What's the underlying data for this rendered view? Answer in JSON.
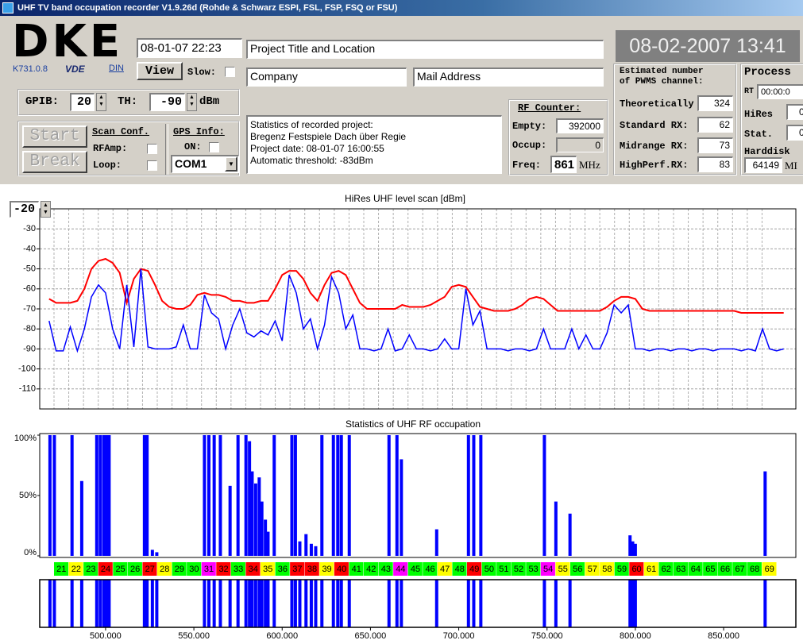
{
  "window": {
    "title": "UHF TV band occupation recorder V1.9.26d (Rohde & Schwarz ESPI, FSL, FSP, FSQ or FSU)"
  },
  "logo": {
    "text": "DKE",
    "version": "K731.0.8",
    "vde": "VDE",
    "din": "DIN"
  },
  "header": {
    "start_time": "08-01-07 22:23",
    "view": "View",
    "slow": "Slow:",
    "project_title": "Project Title and Location",
    "company": "Company",
    "mail": "Mail Address",
    "clock": "08-02-2007 13:41"
  },
  "settings": {
    "gpib_label": "GPIB:",
    "gpib": "20",
    "th_label": "TH:",
    "th": "-90",
    "th_unit": "dBm"
  },
  "controls": {
    "start": "Start",
    "break": "Break",
    "scan_conf": "Scan Conf.",
    "rfamp": "RFAmp:",
    "loop": "Loop:",
    "gps_info": "GPS Info:",
    "gps_on": "ON:",
    "com": "COM1"
  },
  "statistics": {
    "lines": [
      "Statistics of recorded project:",
      "Bregenz Festspiele Dach über Regie",
      "Project date: 08-01-07 16:00:55",
      "Automatic threshold: -83dBm"
    ]
  },
  "rf_counter": {
    "title": "RF Counter:",
    "empty_label": "Empty:",
    "empty": "392000",
    "occup_label": "Occup:",
    "occup": "0",
    "freq_label": "Freq:",
    "freq": "861",
    "freq_unit": "MHz"
  },
  "pwms": {
    "title_lines": [
      "Estimated number",
      "of PWMS channel:"
    ],
    "rows": [
      {
        "label": "Theoretically",
        "value": "324"
      },
      {
        "label": "Standard RX:",
        "value": "62"
      },
      {
        "label": "Midrange RX:",
        "value": "73"
      },
      {
        "label": "HighPerf.RX:",
        "value": "83"
      }
    ]
  },
  "process": {
    "title": "Process",
    "rt_label": "RT",
    "rt": "00:00:0",
    "hires_label": "HiRes",
    "hires": "0",
    "stat_label": "Stat.",
    "stat": "0",
    "harddisk_label": "Harddisk",
    "harddisk": "64149",
    "harddisk_unit": "MI"
  },
  "channels": [
    {
      "number": "21",
      "color": "#00ff00"
    },
    {
      "number": "22",
      "color": "#ffff00"
    },
    {
      "number": "23",
      "color": "#00ff00"
    },
    {
      "number": "24",
      "color": "#ff0000"
    },
    {
      "number": "25",
      "color": "#00ff00"
    },
    {
      "number": "26",
      "color": "#00ff00"
    },
    {
      "number": "27",
      "color": "#ff0000"
    },
    {
      "number": "28",
      "color": "#ffff00"
    },
    {
      "number": "29",
      "color": "#00ff00"
    },
    {
      "number": "30",
      "color": "#00ff00"
    },
    {
      "number": "31",
      "color": "#ff00ff"
    },
    {
      "number": "32",
      "color": "#ff0000"
    },
    {
      "number": "33",
      "color": "#00ff00"
    },
    {
      "number": "34",
      "color": "#ff0000"
    },
    {
      "number": "35",
      "color": "#ffff00"
    },
    {
      "number": "36",
      "color": "#00ff00"
    },
    {
      "number": "37",
      "color": "#ff0000"
    },
    {
      "number": "38",
      "color": "#ff0000"
    },
    {
      "number": "39",
      "color": "#ffff00"
    },
    {
      "number": "40",
      "color": "#ff0000"
    },
    {
      "number": "41",
      "color": "#00ff00"
    },
    {
      "number": "42",
      "color": "#00ff00"
    },
    {
      "number": "43",
      "color": "#00ff00"
    },
    {
      "number": "44",
      "color": "#ff00ff"
    },
    {
      "number": "45",
      "color": "#00ff00"
    },
    {
      "number": "46",
      "color": "#00ff00"
    },
    {
      "number": "47",
      "color": "#ffff00"
    },
    {
      "number": "48",
      "color": "#00ff00"
    },
    {
      "number": "49",
      "color": "#ff0000"
    },
    {
      "number": "50",
      "color": "#00ff00"
    },
    {
      "number": "51",
      "color": "#00ff00"
    },
    {
      "number": "52",
      "color": "#00ff00"
    },
    {
      "number": "53",
      "color": "#00ff00"
    },
    {
      "number": "54",
      "color": "#ff00ff"
    },
    {
      "number": "55",
      "color": "#ffff00"
    },
    {
      "number": "56",
      "color": "#00ff00"
    },
    {
      "number": "57",
      "color": "#ffff00"
    },
    {
      "number": "58",
      "color": "#ffff00"
    },
    {
      "number": "59",
      "color": "#00ff00"
    },
    {
      "number": "60",
      "color": "#ff0000"
    },
    {
      "number": "61",
      "color": "#ffff00"
    },
    {
      "number": "62",
      "color": "#00ff00"
    },
    {
      "number": "63",
      "color": "#00ff00"
    },
    {
      "number": "64",
      "color": "#00ff00"
    },
    {
      "number": "65",
      "color": "#00ff00"
    },
    {
      "number": "66",
      "color": "#00ff00"
    },
    {
      "number": "67",
      "color": "#00ff00"
    },
    {
      "number": "68",
      "color": "#00ff00"
    },
    {
      "number": "69",
      "color": "#ffff00"
    }
  ],
  "chart_data": [
    {
      "type": "line",
      "title": "HiRes UHF level scan [dBm]",
      "x": [
        468,
        472,
        476,
        480,
        484,
        488,
        492,
        496,
        500,
        504,
        508,
        512,
        516,
        520,
        524,
        528,
        532,
        536,
        540,
        544,
        548,
        552,
        556,
        560,
        564,
        568,
        572,
        576,
        580,
        584,
        588,
        592,
        596,
        600,
        604,
        608,
        612,
        616,
        620,
        624,
        628,
        632,
        636,
        640,
        644,
        648,
        652,
        656,
        660,
        664,
        668,
        672,
        676,
        680,
        684,
        688,
        692,
        696,
        700,
        704,
        708,
        712,
        716,
        720,
        724,
        728,
        732,
        736,
        740,
        744,
        748,
        752,
        756,
        760,
        764,
        768,
        772,
        776,
        780,
        784,
        788,
        792,
        796,
        800,
        804,
        808,
        812,
        816,
        820,
        824,
        828,
        832,
        836,
        840,
        844,
        848,
        852,
        856,
        860,
        864,
        868,
        872,
        876,
        880,
        884
      ],
      "series": [
        {
          "color": "#ff0000",
          "values": [
            -65,
            -67,
            -67,
            -67,
            -66,
            -60,
            -50,
            -46,
            -45,
            -47,
            -52,
            -67,
            -55,
            -50,
            -51,
            -58,
            -66,
            -69,
            -70,
            -70,
            -68,
            -63,
            -62,
            -63,
            -63,
            -64,
            -66,
            -66,
            -67,
            -67,
            -66,
            -66,
            -60,
            -53,
            -51,
            -51,
            -55,
            -62,
            -66,
            -58,
            -52,
            -51,
            -53,
            -60,
            -67,
            -70,
            -70,
            -70,
            -70,
            -70,
            -68,
            -69,
            -69,
            -69,
            -68,
            -66,
            -64,
            -59,
            -58,
            -59,
            -64,
            -69,
            -70,
            -71,
            -71,
            -71,
            -70,
            -68,
            -65,
            -64,
            -65,
            -68,
            -71,
            -71,
            -71,
            -71,
            -71,
            -71,
            -71,
            -69,
            -66,
            -64,
            -64,
            -65,
            -70,
            -71,
            -71,
            -71,
            -71,
            -71,
            -71,
            -71,
            -71,
            -71,
            -71,
            -71,
            -71,
            -71,
            -72,
            -72,
            -72,
            -72,
            -72,
            -72,
            -72
          ]
        },
        {
          "color": "#0000ff",
          "values": [
            -76,
            -91,
            -91,
            -79,
            -91,
            -80,
            -64,
            -58,
            -62,
            -80,
            -90,
            -58,
            -89,
            -50,
            -89,
            -90,
            -90,
            -90,
            -89,
            -78,
            -90,
            -90,
            -63,
            -72,
            -75,
            -90,
            -78,
            -70,
            -82,
            -84,
            -81,
            -83,
            -76,
            -86,
            -53,
            -62,
            -80,
            -75,
            -90,
            -78,
            -54,
            -62,
            -80,
            -73,
            -90,
            -90,
            -91,
            -90,
            -80,
            -91,
            -90,
            -83,
            -90,
            -90,
            -91,
            -90,
            -85,
            -90,
            -90,
            -60,
            -78,
            -71,
            -90,
            -90,
            -90,
            -91,
            -90,
            -90,
            -91,
            -90,
            -80,
            -90,
            -90,
            -90,
            -80,
            -90,
            -83,
            -90,
            -90,
            -82,
            -68,
            -72,
            -68,
            -90,
            -90,
            -91,
            -90,
            -90,
            -91,
            -90,
            -90,
            -91,
            -90,
            -90,
            -91,
            -90,
            -90,
            -90,
            -91,
            -90,
            -91,
            -80,
            -90,
            -91,
            -90
          ]
        }
      ],
      "xlim": [
        462.7,
        890.9
      ],
      "ylim": [
        -120,
        -20
      ],
      "yticks": [
        -30,
        -40,
        -50,
        -60,
        -70,
        -80,
        -90,
        -100,
        -110
      ],
      "grid": true
    },
    {
      "type": "bar",
      "title": "Statistics of UHF RF occupation",
      "x": [
        468.5,
        471,
        481,
        486.5,
        495,
        497,
        499,
        500.5,
        502,
        522,
        523.5,
        526.5,
        529,
        556,
        558.5,
        561.5,
        565,
        570.5,
        575,
        579.5,
        581.5,
        583,
        585,
        587,
        588.5,
        590.5,
        592,
        595.5,
        605.5,
        607.5,
        610,
        613.5,
        616.5,
        619,
        622.5,
        629,
        631.5,
        633.5,
        638,
        660.5,
        665,
        667.5,
        687.5,
        705.5,
        708.5,
        712.5,
        748.5,
        755,
        763,
        797,
        798.5,
        800,
        873.5
      ],
      "values": [
        100,
        100,
        100,
        62,
        100,
        100,
        100,
        100,
        100,
        100,
        100,
        5,
        3,
        100,
        100,
        100,
        100,
        58,
        100,
        100,
        95,
        70,
        60,
        65,
        45,
        30,
        20,
        100,
        100,
        100,
        12,
        18,
        10,
        8,
        100,
        100,
        100,
        100,
        100,
        100,
        100,
        80,
        22,
        100,
        100,
        100,
        100,
        45,
        35,
        17,
        12,
        10,
        70
      ],
      "color": "#0000ff",
      "xlim": [
        462.7,
        890.9
      ],
      "ylim": [
        0,
        100
      ],
      "yticks": [
        {
          "value": 100,
          "label": "100%"
        },
        {
          "value": 50,
          "label": "50%"
        },
        {
          "value": 0,
          "label": "0%"
        }
      ],
      "xticks": [
        {
          "value": 500,
          "label": "500.000"
        },
        {
          "value": 550,
          "label": "550.000"
        },
        {
          "value": 600,
          "label": "600.000"
        },
        {
          "value": 650,
          "label": "650.000"
        },
        {
          "value": 700,
          "label": "700.000"
        },
        {
          "value": 750,
          "label": "750.000"
        },
        {
          "value": 800,
          "label": "800.000"
        },
        {
          "value": 850,
          "label": "850.000"
        }
      ]
    }
  ]
}
